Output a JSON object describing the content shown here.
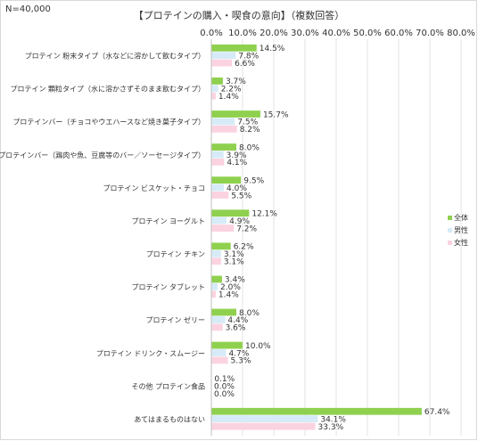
{
  "note": "N=40,000",
  "chart_data": {
    "type": "bar",
    "orientation": "horizontal",
    "title": "【プロテインの購入・喫食の意向】（複数回答）",
    "categories": [
      "プロテイン 粉末タイプ（水などに溶かして飲むタイプ）",
      "プロテイン 顆粒タイプ（水に溶かさずそのまま飲むタイプ）",
      "プロテインバー（チョコやウエハースなど焼き菓子タイプ）",
      "プロテインバー（鶏肉や魚、豆腐等のバー／ソーセージタイプ）",
      "プロテイン ビスケット・チョコ",
      "プロテイン ヨーグルト",
      "プロテイン チキン",
      "プロテイン タブレット",
      "プロテイン ゼリー",
      "プロテイン ドリンク・スムージー",
      "その他 プロテイン食品",
      "あてはまるものはない"
    ],
    "series": [
      {
        "name": "全体",
        "color": "#8fd14f",
        "values": [
          14.5,
          3.7,
          15.7,
          8.0,
          9.5,
          12.1,
          6.2,
          3.4,
          8.0,
          10.0,
          0.1,
          67.4
        ]
      },
      {
        "name": "男性",
        "color": "#d6ebf7",
        "values": [
          7.8,
          2.2,
          7.5,
          3.9,
          4.0,
          4.9,
          3.1,
          2.0,
          4.4,
          4.7,
          0.0,
          34.1
        ]
      },
      {
        "name": "女性",
        "color": "#fbd3e0",
        "values": [
          6.6,
          1.4,
          8.2,
          4.1,
          5.5,
          7.2,
          3.1,
          1.4,
          3.6,
          5.3,
          0.0,
          33.3
        ]
      }
    ],
    "x_ticks": [
      "0.0%",
      "10.0%",
      "20.0%",
      "30.0%",
      "40.0%",
      "50.0%",
      "60.0%",
      "70.0%",
      "80.0%"
    ],
    "xlim": [
      0,
      80
    ],
    "value_format": "%",
    "grid": true,
    "legend_position": "right"
  }
}
